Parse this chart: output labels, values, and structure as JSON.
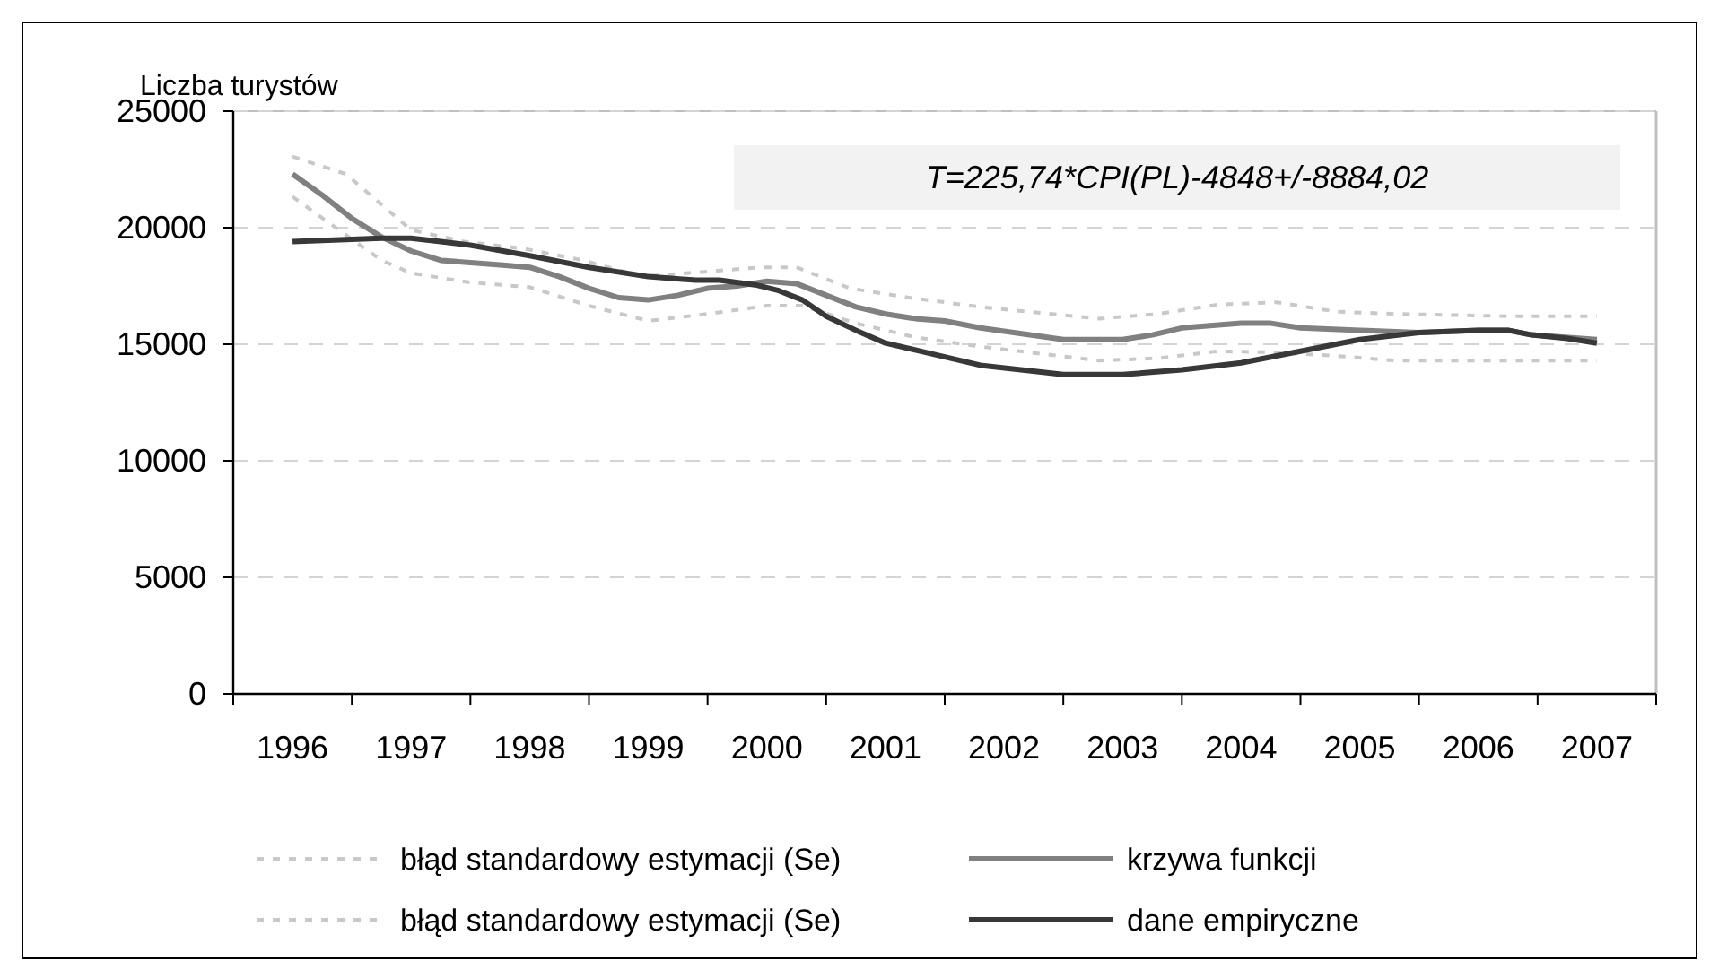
{
  "chart_data": {
    "type": "line",
    "ylabel": "Liczba turystów",
    "annotations": [
      "T=225,74*CPI(PL)-4848+/-8884,02"
    ],
    "xlim": [
      1995.5,
      2007.5
    ],
    "xticks": [
      {
        "value": 1995.5,
        "label": null
      },
      1996,
      {
        "value": 1996.5,
        "label": null
      },
      1997,
      {
        "value": 1997.5,
        "label": null
      },
      1998,
      {
        "value": 1998.5,
        "label": null
      },
      1999,
      {
        "value": 1999.5,
        "label": null
      },
      2000,
      {
        "value": 2000.5,
        "label": null
      },
      2001,
      {
        "value": 2001.5,
        "label": null
      },
      2002,
      {
        "value": 2002.5,
        "label": null
      },
      2003,
      {
        "value": 2003.5,
        "label": null
      },
      2004,
      {
        "value": 2004.5,
        "label": null
      },
      2005,
      {
        "value": 2005.5,
        "label": null
      },
      2006,
      {
        "value": 2006.5,
        "label": null
      },
      2007,
      {
        "value": 2007.5,
        "label": null
      }
    ],
    "ylim": [
      0,
      25000
    ],
    "yticks": [
      0,
      5000,
      10000,
      15000,
      20000,
      25000
    ],
    "grid": "y",
    "legend": "bottom",
    "series": [
      {
        "name": "błąd standardowy estymacji (Se)",
        "color": "#c8c8c8",
        "line_style": "dashed",
        "x": [
          1996,
          1996.45,
          1997,
          1997.45,
          1997.95,
          1998.45,
          1998.95,
          1999.45,
          1999.95,
          2000.25,
          2000.7,
          2001.2,
          2001.8,
          2002.8,
          2003.3,
          2003.8,
          2004.3,
          2004.8,
          2005.3,
          2006.3,
          2007
        ],
        "values": [
          23050,
          22300,
          19900,
          19400,
          19100,
          18600,
          17900,
          18100,
          18300,
          18300,
          17400,
          17000,
          16600,
          16100,
          16300,
          16700,
          16800,
          16400,
          16300,
          16200,
          16200
        ]
      },
      {
        "name": "krzywa funkcji",
        "color": "#808080",
        "x": [
          1996,
          1996.25,
          1996.5,
          1996.75,
          1997,
          1997.25,
          1997.5,
          1997.75,
          1998,
          1998.25,
          1998.5,
          1998.75,
          1999,
          1999.25,
          1999.5,
          1999.75,
          2000,
          2000.25,
          2000.5,
          2000.75,
          2001,
          2001.25,
          2001.5,
          2001.8,
          2002.5,
          2003,
          2003.25,
          2003.5,
          2004,
          2004.25,
          2004.5,
          2005,
          2005.5,
          2006,
          2006.25,
          2006.45,
          2007
        ],
        "values": [
          22300,
          21400,
          20400,
          19600,
          19000,
          18600,
          18500,
          18400,
          18300,
          17900,
          17400,
          17000,
          16900,
          17100,
          17400,
          17500,
          17700,
          17600,
          17100,
          16600,
          16300,
          16100,
          16000,
          15700,
          15200,
          15200,
          15400,
          15700,
          15900,
          15900,
          15700,
          15600,
          15500,
          15600,
          15600,
          15400,
          15200
        ]
      },
      {
        "name": "błąd standardowy estymacji (Se)",
        "color": "#c8c8c8",
        "line_style": "dashed",
        "x": [
          1996,
          1996.5,
          1996.75,
          1997,
          1997.5,
          1998,
          1998.5,
          1999,
          1999.5,
          2000,
          2000.3,
          2000.75,
          2001.25,
          2001.8,
          2002.8,
          2003.3,
          2003.8,
          2004.3,
          2004.8,
          2005.3,
          2006.3,
          2007
        ],
        "values": [
          21330,
          19500,
          18600,
          18050,
          17650,
          17450,
          16650,
          16000,
          16300,
          16650,
          16650,
          15900,
          15300,
          14900,
          14300,
          14400,
          14700,
          14650,
          14500,
          14300,
          14300,
          14300
        ]
      },
      {
        "name": "dane empiryczne",
        "color": "#383838",
        "x": [
          1996,
          1996.5,
          1996.75,
          1997,
          1997.25,
          1997.5,
          1998,
          1998.5,
          1999,
          1999.4,
          1999.6,
          1999.9,
          2000.1,
          2000.3,
          2000.5,
          2000.75,
          2001,
          2001.3,
          2001.8,
          2002.5,
          2003,
          2003.5,
          2004,
          2004.5,
          2005,
          2005.5,
          2006,
          2006.25,
          2006.45,
          2006.75,
          2007
        ],
        "values": [
          19400,
          19500,
          19550,
          19550,
          19400,
          19250,
          18800,
          18300,
          17900,
          17750,
          17750,
          17550,
          17300,
          16900,
          16200,
          15600,
          15050,
          14700,
          14100,
          13700,
          13700,
          13900,
          14200,
          14700,
          15200,
          15500,
          15600,
          15600,
          15400,
          15250,
          15050
        ]
      }
    ]
  }
}
